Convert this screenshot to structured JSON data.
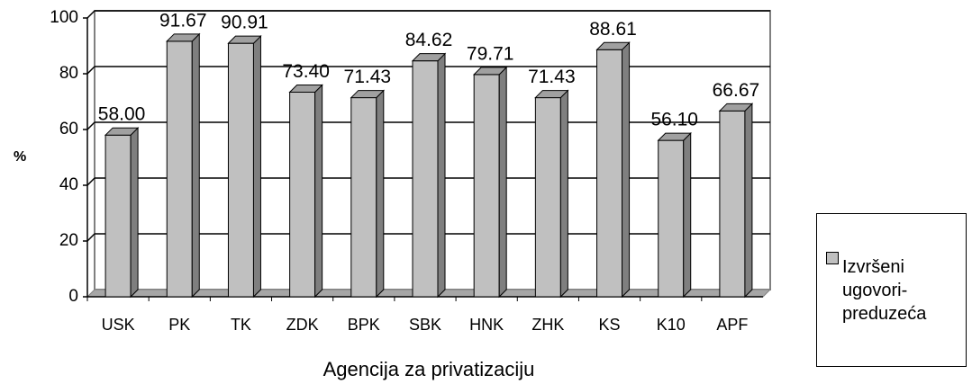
{
  "chart_data": {
    "type": "bar3d",
    "categories": [
      "USK",
      "PK",
      "TK",
      "ZDK",
      "BPK",
      "SBK",
      "HNK",
      "ZHK",
      "KS",
      "K10",
      "APF"
    ],
    "series": [
      {
        "name": "Izvršeni ugovori-preduzeća",
        "color": "#c0c0c0",
        "values": [
          58,
          91.67,
          90.91,
          73.4,
          71.43,
          84.62,
          79.71,
          71.43,
          88.61,
          56.1,
          66.67
        ],
        "value_labels": [
          "58.00",
          "91.67",
          "90.91",
          "73.40",
          "71.43",
          "84.62",
          "79.71",
          "71.43",
          "88.61",
          "56.10",
          "66.67"
        ]
      }
    ],
    "ylim": [
      0,
      100
    ],
    "yticks": [
      0,
      20,
      40,
      60,
      80,
      100
    ],
    "x_label": "Agencija za privatizaciju",
    "y_label": "%",
    "grid": true,
    "legend": "right"
  }
}
